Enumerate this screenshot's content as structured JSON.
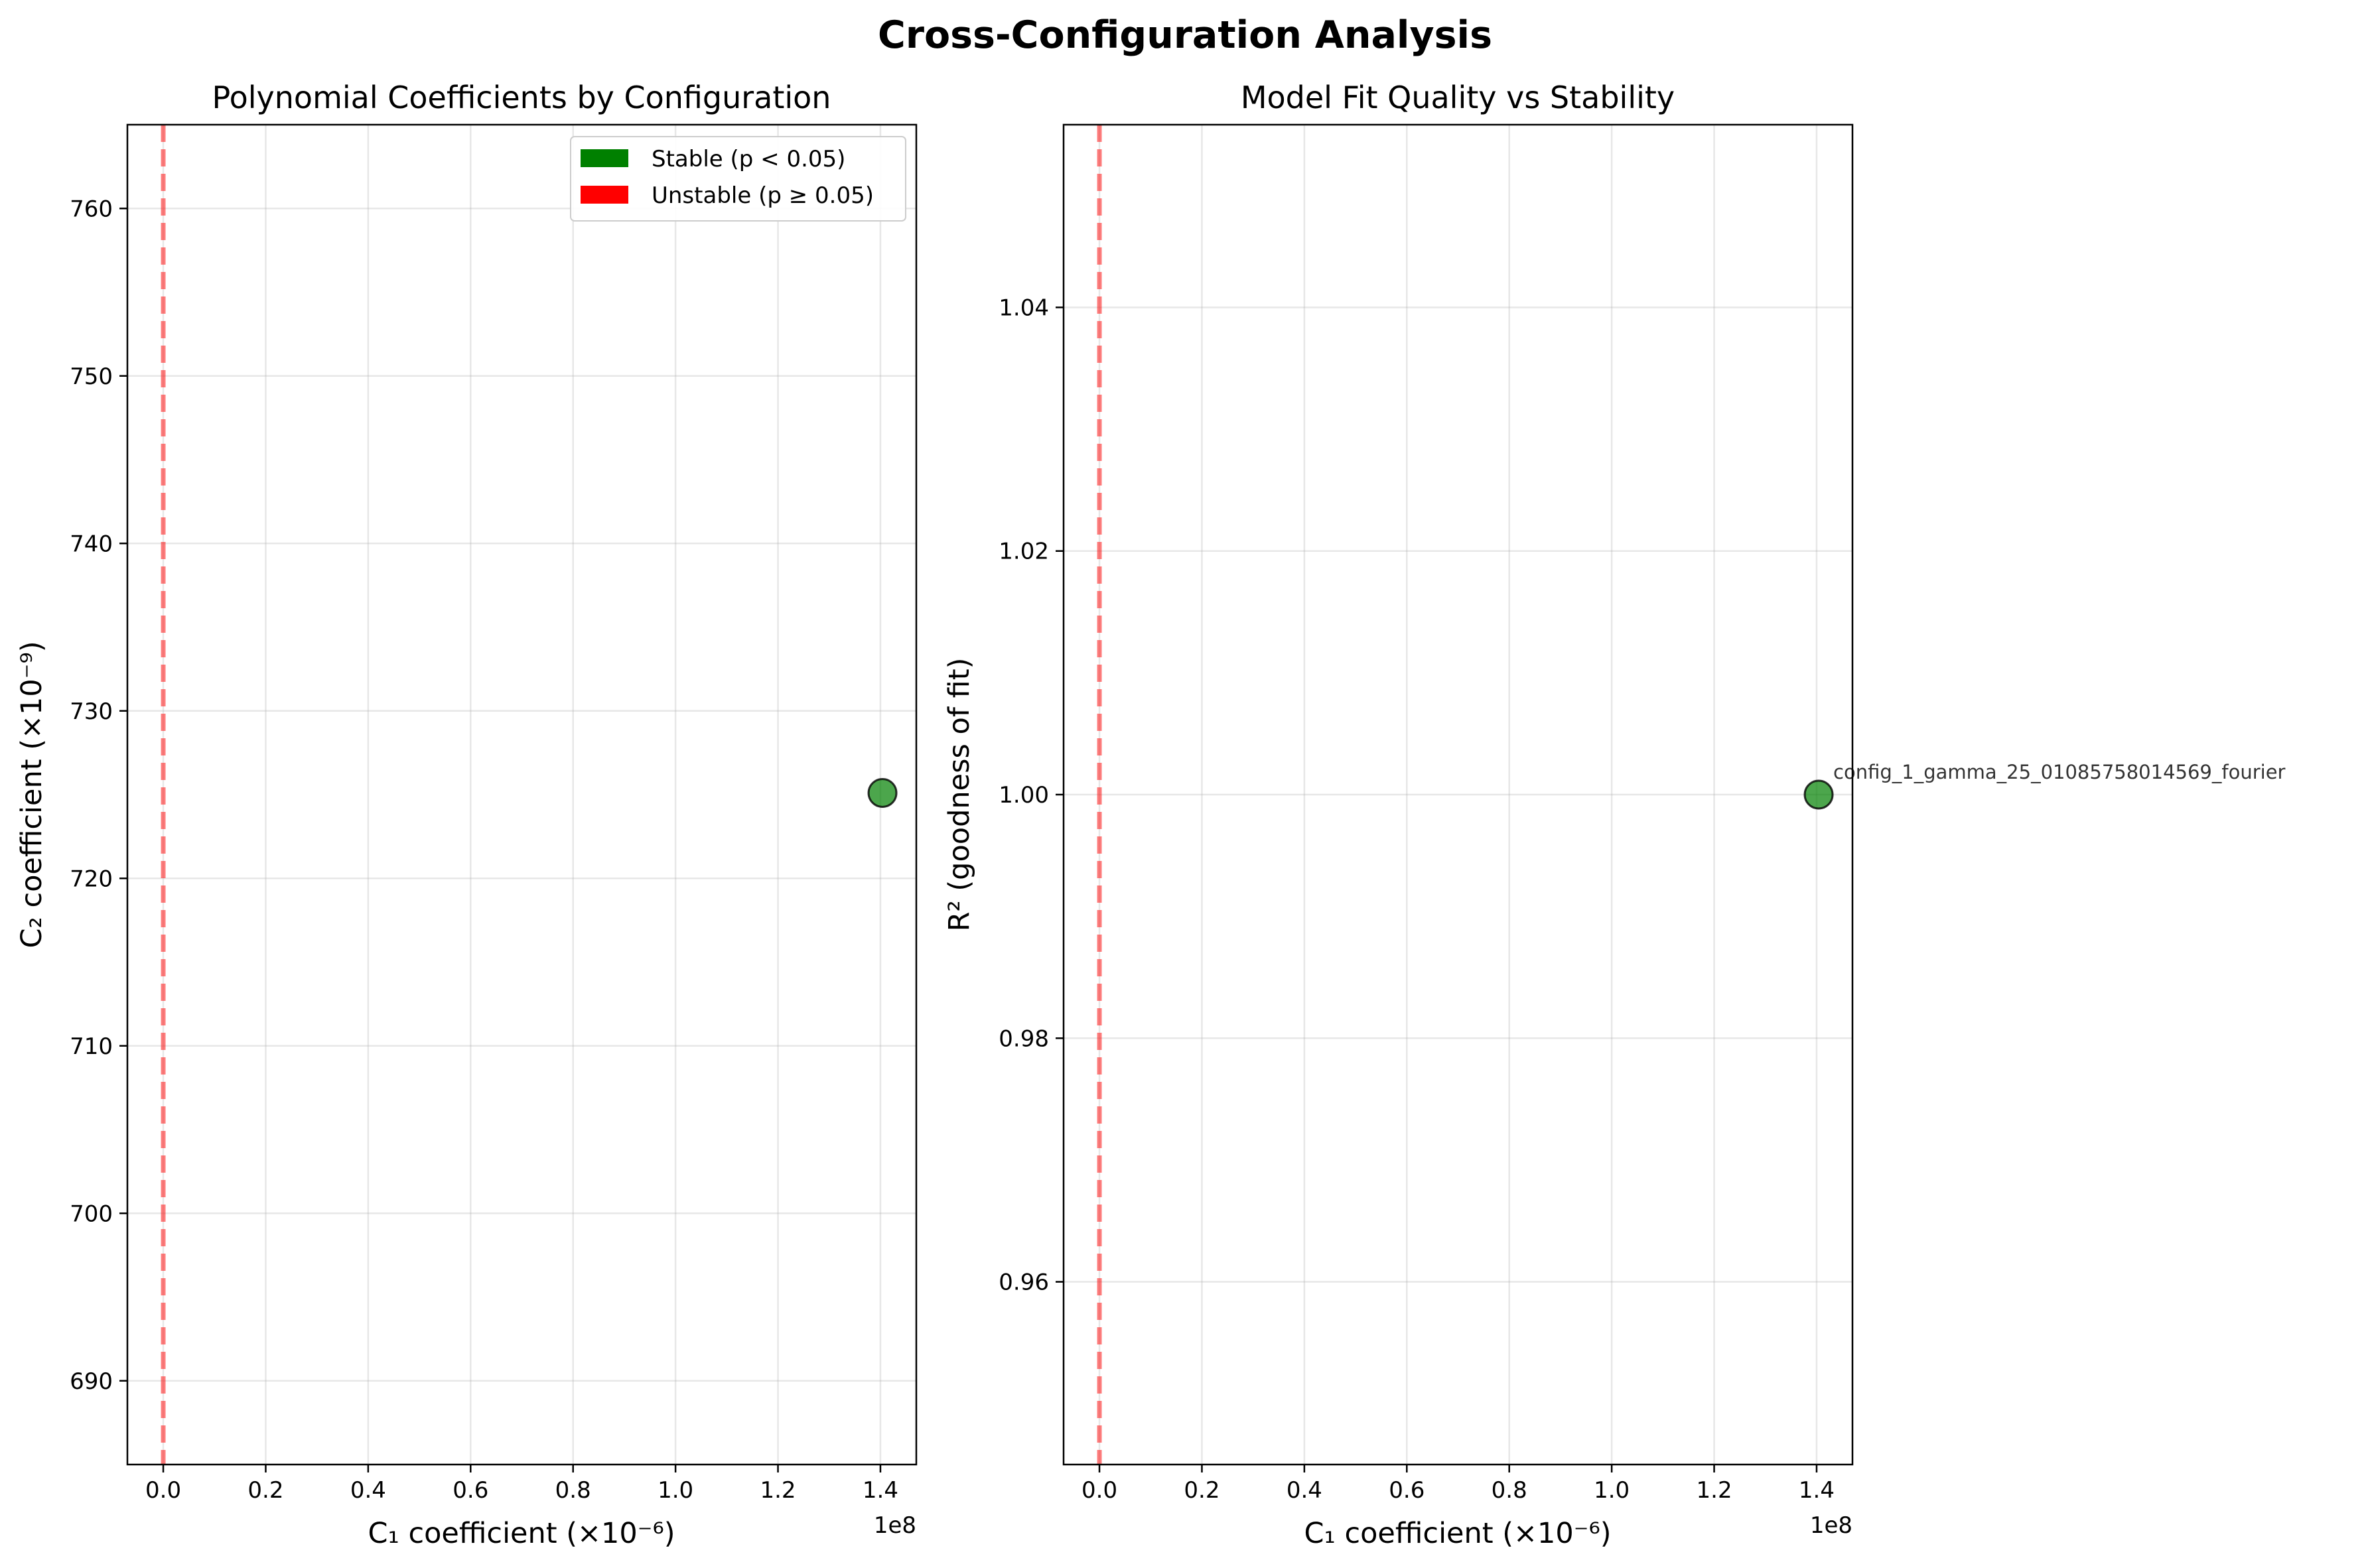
{
  "suptitle": "Cross-Configuration Analysis",
  "legend": {
    "items": [
      {
        "label": "Stable (p < 0.05)",
        "color": "#008000"
      },
      {
        "label": "Unstable (p ≥ 0.05)",
        "color": "#ff0000"
      }
    ],
    "placement": "upper right"
  },
  "chart_data": [
    {
      "type": "scatter",
      "title": "Polynomial Coefficients by Configuration",
      "xlabel": "C₁ coefficient (×10⁻⁶)",
      "ylabel": "C₂ coefficient (×10⁻⁹)",
      "x_offset_label": "1e8",
      "xlim": [
        -0.07,
        1.47
      ],
      "ylim": [
        685,
        765
      ],
      "xticks": [
        0.0,
        0.2,
        0.4,
        0.6,
        0.8,
        1.0,
        1.2,
        1.4
      ],
      "xtick_labels": [
        "0.0",
        "0.2",
        "0.4",
        "0.6",
        "0.8",
        "1.0",
        "1.2",
        "1.4"
      ],
      "yticks": [
        690,
        700,
        710,
        720,
        730,
        740,
        750,
        760
      ],
      "ytick_labels": [
        "690",
        "700",
        "710",
        "720",
        "730",
        "740",
        "750",
        "760"
      ],
      "grid": true,
      "reference_line": {
        "axis": "x",
        "value": 0,
        "color": "#ff0000",
        "style": "dashed",
        "opacity": 0.5
      },
      "points": [
        {
          "x": 1.404,
          "y": 725.1,
          "color": "#008000",
          "stable": true
        }
      ]
    },
    {
      "type": "scatter",
      "title": "Model Fit Quality vs Stability",
      "xlabel": "C₁ coefficient (×10⁻⁶)",
      "ylabel": "R² (goodness of fit)",
      "x_offset_label": "1e8",
      "xlim": [
        -0.07,
        1.47
      ],
      "ylim": [
        0.945,
        1.055
      ],
      "xticks": [
        0.0,
        0.2,
        0.4,
        0.6,
        0.8,
        1.0,
        1.2,
        1.4
      ],
      "xtick_labels": [
        "0.0",
        "0.2",
        "0.4",
        "0.6",
        "0.8",
        "1.0",
        "1.2",
        "1.4"
      ],
      "yticks": [
        0.96,
        0.98,
        1.0,
        1.02,
        1.04
      ],
      "ytick_labels": [
        "0.96",
        "0.98",
        "1.00",
        "1.02",
        "1.04"
      ],
      "grid": true,
      "reference_line": {
        "axis": "x",
        "value": 0,
        "color": "#ff0000",
        "style": "dashed",
        "opacity": 0.5
      },
      "points": [
        {
          "x": 1.404,
          "y": 1.0,
          "color": "#008000",
          "stable": true,
          "label": "config_1_gamma_25_01085758014569_fourier"
        }
      ]
    }
  ]
}
